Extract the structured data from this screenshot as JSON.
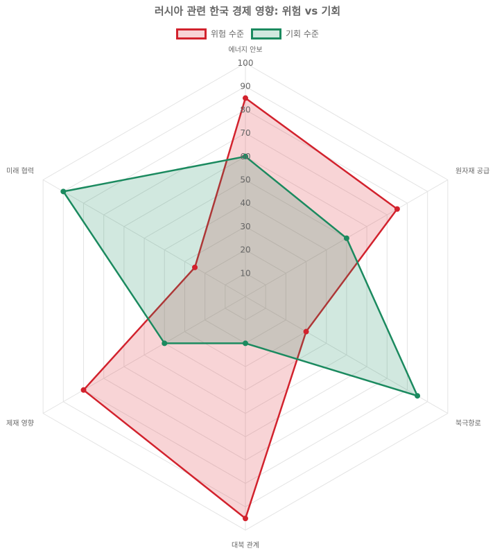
{
  "chart_data": {
    "type": "radar",
    "title": "러시아 관련 한국 경제 영향: 위험 vs 기회",
    "axes": [
      "에너지 안보",
      "원자재 공급",
      "북극항로",
      "대북 관계",
      "제재 영향",
      "미래 협력"
    ],
    "r_ticks": [
      10,
      20,
      30,
      40,
      50,
      60,
      70,
      80,
      90,
      100
    ],
    "r_range": [
      0,
      100
    ],
    "legend_position": "top-center",
    "series": [
      {
        "name": "위험 수준",
        "values": [
          85,
          75,
          30,
          95,
          80,
          25
        ],
        "stroke": "#d2222d",
        "fill": "rgba(225,60,70,0.22)"
      },
      {
        "name": "기회 수준",
        "values": [
          60,
          50,
          85,
          20,
          40,
          90
        ],
        "stroke": "#1b8a5f",
        "fill": "rgba(27,138,95,0.20)"
      }
    ]
  }
}
